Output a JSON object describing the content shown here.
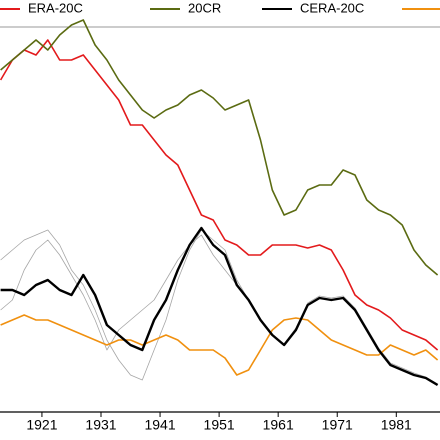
{
  "chart_data": {
    "type": "line",
    "x": [
      1914,
      1916,
      1918,
      1920,
      1922,
      1924,
      1926,
      1928,
      1930,
      1932,
      1934,
      1936,
      1938,
      1940,
      1942,
      1944,
      1946,
      1948,
      1950,
      1952,
      1954,
      1956,
      1958,
      1960,
      1962,
      1964,
      1966,
      1968,
      1970,
      1972,
      1974,
      1976,
      1978,
      1980,
      1982,
      1984,
      1986,
      1988
    ],
    "xlim": [
      1913.9,
      1988.4
    ],
    "xticks": [
      1921,
      1931,
      1941,
      1951,
      1961,
      1971,
      1981
    ],
    "ylim": [
      0,
      412
    ],
    "series": [
      {
        "color": "#a6a6a6",
        "values": [
          152,
          162,
          172,
          177,
          182,
          167,
          142,
          127,
          102,
          72,
          52,
          37,
          32,
          62,
          92,
          132,
          162,
          182,
          172,
          162,
          132,
          112,
          92,
          77,
          67,
          82,
          107,
          114,
          112,
          114,
          102,
          82,
          62,
          47,
          42,
          37,
          34,
          27
        ]
      },
      {
        "color": "#a6a6a6",
        "values": [
          102,
          112,
          142,
          162,
          172,
          157,
          137,
          117,
          92,
          62,
          82,
          92,
          102,
          112,
          132,
          152,
          167,
          177,
          157,
          142,
          127,
          112,
          92,
          77,
          68,
          84,
          109,
          116,
          114,
          116,
          104,
          84,
          64,
          49,
          44,
          39,
          35,
          28
        ]
      },
      {
        "color": "#f0900f",
        "values": [
          87,
          92,
          97,
          92,
          92,
          87,
          82,
          77,
          72,
          67,
          72,
          72,
          67,
          72,
          77,
          72,
          62,
          62,
          62,
          54,
          37,
          42,
          62,
          82,
          92,
          94,
          92,
          82,
          72,
          67,
          62,
          57,
          57,
          67,
          62,
          57,
          62,
          52
        ]
      },
      {
        "name": "ERA-20C",
        "color": "#e31a1c",
        "values": [
          332,
          352,
          362,
          357,
          372,
          352,
          352,
          357,
          342,
          327,
          312,
          287,
          287,
          272,
          257,
          247,
          222,
          197,
          192,
          172,
          167,
          157,
          157,
          167,
          167,
          167,
          164,
          167,
          162,
          142,
          117,
          107,
          102,
          94,
          82,
          77,
          72,
          62
        ]
      },
      {
        "name": "20CR",
        "color": "#5b6b12",
        "values": [
          342,
          352,
          362,
          372,
          362,
          377,
          387,
          392,
          367,
          352,
          332,
          317,
          302,
          294,
          302,
          307,
          317,
          322,
          314,
          302,
          307,
          312,
          272,
          222,
          197,
          202,
          222,
          227,
          227,
          242,
          237,
          212,
          202,
          197,
          187,
          162,
          147,
          137
        ]
      },
      {
        "name": "CERA-20C",
        "color": "#000000",
        "values": [
          122,
          122,
          117,
          127,
          132,
          122,
          117,
          137,
          117,
          87,
          77,
          67,
          62,
          92,
          112,
          142,
          167,
          184,
          167,
          157,
          127,
          112,
          92,
          77,
          67,
          82,
          107,
          114,
          112,
          114,
          102,
          82,
          62,
          47,
          42,
          37,
          34,
          27
        ]
      }
    ]
  }
}
